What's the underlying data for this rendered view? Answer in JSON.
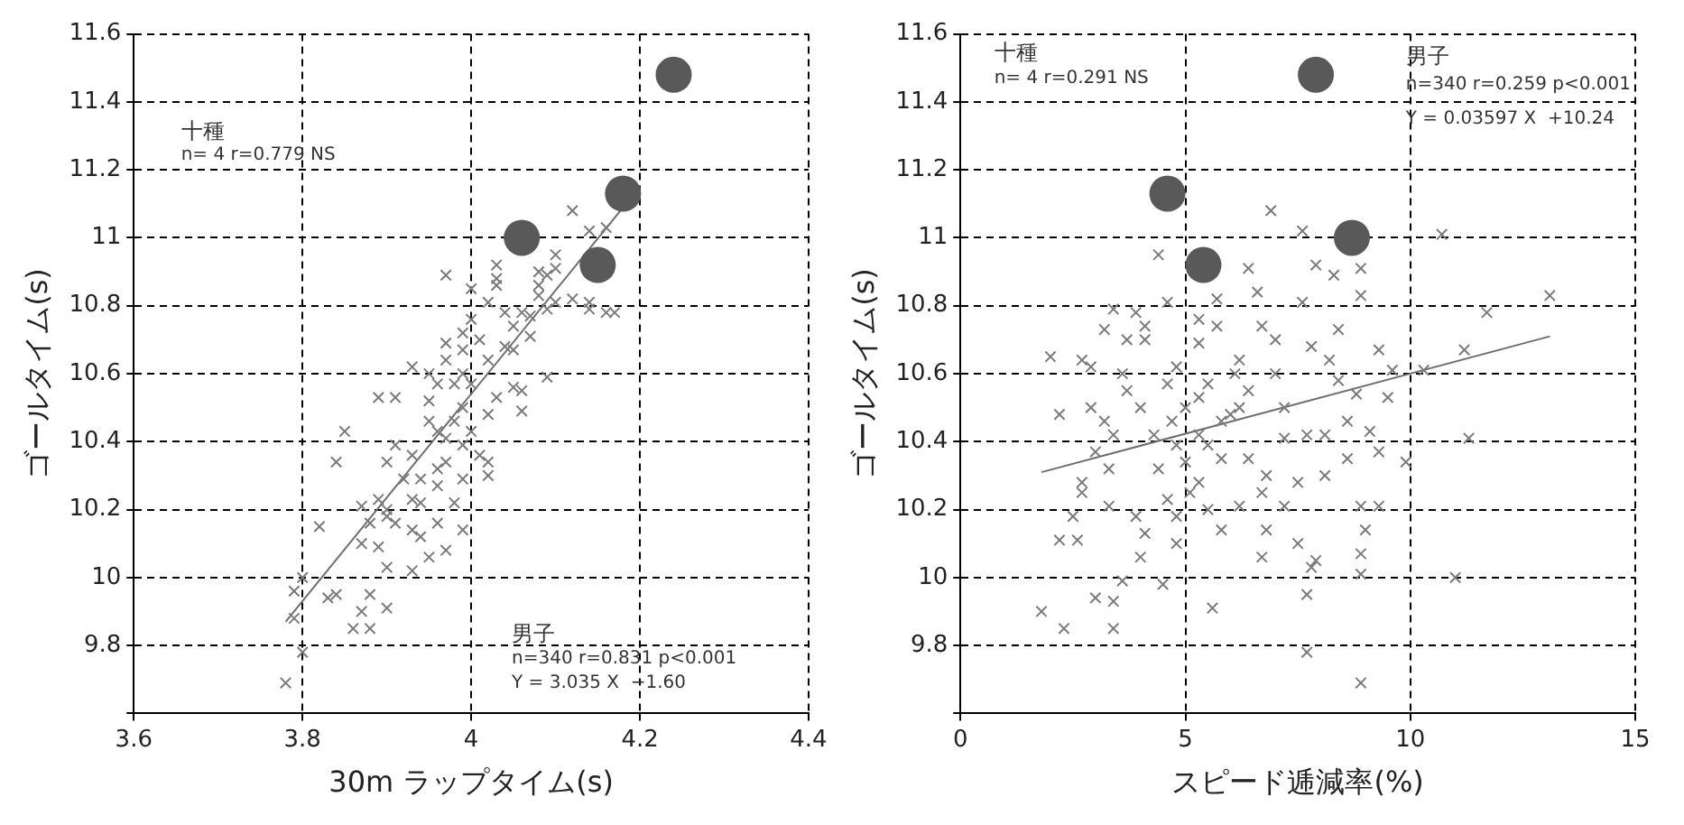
{
  "chart_data": [
    {
      "type": "scatter",
      "xlabel": "30m ラップタイム(s)",
      "ylabel": "ゴールタイム(s)",
      "xlim": [
        3.6,
        4.4
      ],
      "xticks": [
        3.6,
        3.8,
        4,
        4.2,
        4.4
      ],
      "ylim": [
        9.6,
        11.6
      ],
      "yticks": [
        {
          "value": 9.6,
          "label": null
        },
        9.8,
        10,
        10.2,
        10.4,
        10.6,
        10.8,
        11,
        11.2,
        11.4,
        11.6
      ],
      "grid": true,
      "legend": false,
      "annotations": [
        "十種",
        "n= 4 r=0.779 NS",
        "男子",
        "n=340 r=0.831 p<0.001",
        "Y = 3.035 X  −1.60"
      ],
      "series": [
        {
          "marker": "cross",
          "color": "#7a7a7a",
          "x": [
            4.12,
            3.97,
            3.78,
            3.8,
            3.82,
            3.84,
            3.85,
            3.99,
            4.09,
            4.17,
            4.14,
            4.06,
            3.86,
            3.88,
            3.9,
            3.88,
            3.79,
            3.79,
            3.8,
            3.83,
            3.84,
            3.87,
            3.9,
            3.93,
            3.95,
            3.97,
            3.87,
            3.89,
            3.94,
            3.96,
            3.87,
            3.9,
            3.93,
            3.89,
            3.91,
            3.93,
            3.95,
            3.95,
            3.91,
            3.9,
            3.93,
            3.94,
            3.96,
            3.97,
            3.98,
            3.99,
            4,
            3.96,
            3.97,
            3.97,
            3.99,
            4,
            4.02,
            4,
            4.03,
            4.04,
            4.05,
            4.07,
            4.05,
            4.02,
            4.05,
            4.02,
            4.01,
            4.02,
            4.02,
            3.99,
            3.98,
            3.96,
            3.92,
            3.89,
            3.88,
            3.93,
            4.06,
            4.08,
            4.09,
            4.1,
            4.12,
            4.08,
            4.1,
            4.1,
            4.09,
            4.08,
            4.03,
            4.03,
            4.07,
            4.04,
            4.06,
            4.03,
            3.99,
            3.98,
            3.95,
            3.96,
            3.99,
            3.97,
            3.94,
            3.91,
            3.9,
            4,
            3.99,
            4.01,
            4.14,
            4.16,
            4.14,
            4.16
          ],
          "values": [
            11.08,
            10.89,
            9.69,
            9.78,
            10.15,
            10.34,
            10.43,
            10.14,
            10.59,
            10.78,
            10.79,
            10.49,
            9.85,
            9.85,
            9.91,
            9.95,
            9.96,
            9.88,
            10,
            9.94,
            9.95,
            9.9,
            10.03,
            10.02,
            10.06,
            10.08,
            10.1,
            10.09,
            10.12,
            10.16,
            10.21,
            10.2,
            10.23,
            10.53,
            10.53,
            10.62,
            10.6,
            10.46,
            10.39,
            10.34,
            10.36,
            10.29,
            10.32,
            10.41,
            10.46,
            10.5,
            10.57,
            10.57,
            10.64,
            10.69,
            10.72,
            10.76,
            10.81,
            10.85,
            10.86,
            10.78,
            10.74,
            10.71,
            10.67,
            10.64,
            10.56,
            10.48,
            10.36,
            10.34,
            10.3,
            10.29,
            10.22,
            10.27,
            10.29,
            10.23,
            10.16,
            10.14,
            10.78,
            10.83,
            10.79,
            10.81,
            10.82,
            10.86,
            10.91,
            10.95,
            10.89,
            10.9,
            10.92,
            10.88,
            10.77,
            10.68,
            10.55,
            10.53,
            10.67,
            10.57,
            10.52,
            10.43,
            10.39,
            10.34,
            10.22,
            10.16,
            10.18,
            10.43,
            10.6,
            10.7,
            11.02,
            11.03,
            10.81,
            10.78
          ]
        },
        {
          "marker": "circle",
          "color": "#595959",
          "x": [
            4.24,
            4.18,
            4.06,
            4.15
          ],
          "values": [
            11.48,
            11.13,
            11,
            10.92
          ]
        },
        {
          "type": "line",
          "marker": "none",
          "color": "#6e6e6e",
          "x": [
            3.78,
            4.2
          ],
          "values": [
            9.87,
            11.15
          ]
        }
      ]
    },
    {
      "type": "scatter",
      "xlabel": "スピード逓減率(%)",
      "ylabel": "ゴールタイム(s)",
      "xlim": [
        0,
        15
      ],
      "xticks": [
        0,
        5,
        10,
        15
      ],
      "ylim": [
        9.6,
        11.6
      ],
      "yticks": [
        {
          "value": 9.6,
          "label": null
        },
        9.8,
        10,
        10.2,
        10.4,
        10.6,
        10.8,
        11,
        11.2,
        11.4,
        11.6
      ],
      "grid": true,
      "legend": false,
      "annotations": [
        "十種",
        "n= 4 r=0.291 NS",
        "男子",
        "n=340 r=0.259 p<0.001",
        "Y = 0.03597 X  +10.24"
      ],
      "series": [
        {
          "marker": "cross",
          "color": "#7a7a7a",
          "x": [
            6.9,
            7.6,
            10.7,
            4.4,
            7.9,
            8.3,
            8.9,
            6.4,
            6.6,
            8.9,
            13.1,
            11.7,
            7.6,
            5.7,
            4.6,
            3.4,
            3.9,
            3.2,
            2,
            2.7,
            2.9,
            2.2,
            2.9,
            3.7,
            4.1,
            5.3,
            5.7,
            6.7,
            7,
            7.8,
            8.4,
            8.2,
            9.3,
            9.6,
            11.2,
            10.3,
            9.5,
            8.8,
            8.6,
            9.1,
            11.3,
            9.3,
            9.9,
            8.6,
            8.1,
            7.5,
            7.7,
            7.2,
            6.8,
            6.4,
            6,
            6.4,
            6.1,
            5.5,
            4.8,
            4.6,
            3.7,
            4,
            3.4,
            3,
            3.3,
            2.7,
            2.7,
            2.6,
            2.2,
            2.5,
            3.3,
            3.9,
            4.1,
            4.8,
            4.6,
            5,
            5.3,
            5.3,
            5.8,
            5.5,
            6.2,
            6.7,
            7.2,
            6.8,
            7.5,
            6.7,
            7.9,
            7.8,
            8.9,
            9.3,
            9,
            8.9,
            8.9,
            7.7,
            11,
            5.6,
            4.5,
            3.4,
            3.4,
            3,
            1.8,
            2.3,
            7.7,
            8.9,
            4,
            3.6,
            4.4,
            4.7,
            4.3,
            5,
            5.3,
            5.8,
            6.2,
            7,
            7.2,
            8.1,
            8.4,
            3.2,
            3.6,
            4.1,
            5.3,
            4.8,
            5.5,
            5.1,
            5.8,
            6.2,
            4.8
          ],
          "values": [
            11.08,
            11.02,
            11.01,
            10.95,
            10.92,
            10.89,
            10.91,
            10.91,
            10.84,
            10.83,
            10.83,
            10.78,
            10.81,
            10.82,
            10.81,
            10.79,
            10.78,
            10.73,
            10.65,
            10.64,
            10.62,
            10.48,
            10.5,
            10.7,
            10.7,
            10.69,
            10.74,
            10.74,
            10.7,
            10.68,
            10.73,
            10.64,
            10.67,
            10.61,
            10.67,
            10.61,
            10.53,
            10.54,
            10.46,
            10.43,
            10.41,
            10.37,
            10.34,
            10.35,
            10.3,
            10.28,
            10.42,
            10.41,
            10.3,
            10.35,
            10.48,
            10.55,
            10.6,
            10.57,
            10.62,
            10.57,
            10.55,
            10.5,
            10.42,
            10.37,
            10.32,
            10.28,
            10.25,
            10.11,
            10.11,
            10.18,
            10.21,
            10.18,
            10.13,
            10.1,
            10.23,
            10.34,
            10.42,
            10.28,
            10.35,
            10.2,
            10.21,
            10.25,
            10.21,
            10.14,
            10.1,
            10.06,
            10.05,
            10.03,
            10.21,
            10.21,
            10.14,
            10.07,
            10.01,
            9.95,
            10,
            9.91,
            9.98,
            9.93,
            9.85,
            9.94,
            9.9,
            9.85,
            9.78,
            9.69,
            10.06,
            9.99,
            10.32,
            10.46,
            10.42,
            10.5,
            10.53,
            10.46,
            10.5,
            10.6,
            10.5,
            10.42,
            10.58,
            10.46,
            10.6,
            10.74,
            10.76,
            10.39,
            10.39,
            10.25,
            10.14,
            10.64,
            10.18
          ]
        },
        {
          "marker": "circle",
          "color": "#595959",
          "x": [
            7.9,
            4.6,
            8.7,
            5.4
          ],
          "values": [
            11.48,
            11.13,
            11,
            10.92
          ]
        },
        {
          "type": "line",
          "marker": "none",
          "color": "#6e6e6e",
          "x": [
            1.8,
            13.1
          ],
          "values": [
            10.31,
            10.71
          ]
        }
      ]
    }
  ]
}
